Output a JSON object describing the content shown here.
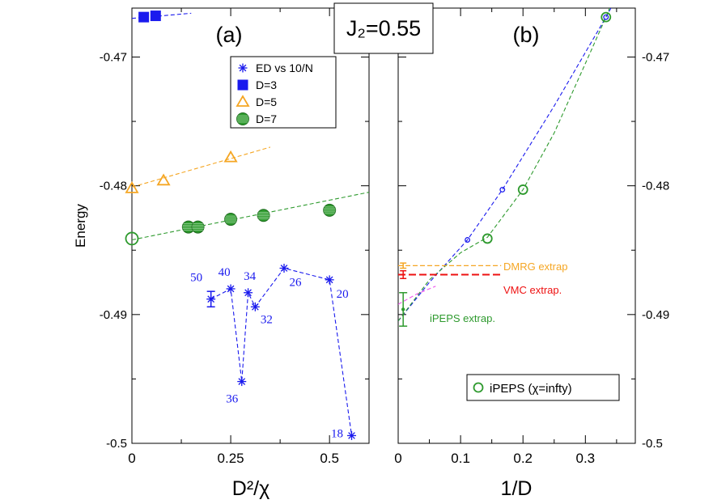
{
  "figure_label": "J₂=0.55",
  "colors": {
    "blue": "#1a1aee",
    "orange": "#f5a623",
    "green": "#2e9a2e",
    "red": "#ee1111",
    "magenta": "#ee55ee"
  },
  "chart_data": [
    {
      "type": "scatter",
      "panel_label": "(a)",
      "xlabel": "D²/χ",
      "ylabel": "Energy",
      "xlim": [
        0,
        0.6
      ],
      "ylim": [
        -0.5,
        -0.4662
      ],
      "xticks": [
        0,
        0.25,
        0.5
      ],
      "xtick_labels": [
        "0",
        "0.25",
        "0.5"
      ],
      "yticks": [
        -0.5,
        -0.49,
        -0.48,
        -0.47
      ],
      "ytick_labels": [
        "-0.5",
        "-0.49",
        "-0.48",
        "-0.47"
      ],
      "legend": [
        {
          "name": "ED vs 10/N",
          "color": "#1a1aee",
          "marker": "star"
        },
        {
          "name": "D=3",
          "color": "#1a1aee",
          "marker": "square"
        },
        {
          "name": "D=5",
          "color": "#f5a623",
          "marker": "triangle"
        },
        {
          "name": "D=7",
          "color": "#2e9a2e",
          "marker": "circle"
        }
      ],
      "series": [
        {
          "name": "ED vs 10/N",
          "color": "#1a1aee",
          "marker": "star",
          "connect": true,
          "points": [
            {
              "x": 0.2,
              "y": -0.4888,
              "label": "50",
              "errorbar": 0.0006
            },
            {
              "x": 0.25,
              "y": -0.488,
              "label": "40"
            },
            {
              "x": 0.278,
              "y": -0.4952,
              "label": "36"
            },
            {
              "x": 0.294,
              "y": -0.4883,
              "label": "34"
            },
            {
              "x": 0.312,
              "y": -0.4894,
              "label": "32"
            },
            {
              "x": 0.385,
              "y": -0.4864,
              "label": "26"
            },
            {
              "x": 0.5,
              "y": -0.4873,
              "label": "20"
            },
            {
              "x": 0.556,
              "y": -0.4994,
              "label": "18"
            }
          ]
        },
        {
          "name": "D=3",
          "color": "#1a1aee",
          "marker": "square",
          "points": [
            {
              "x": 0.03,
              "y": -0.4669
            },
            {
              "x": 0.06,
              "y": -0.4668
            }
          ],
          "fit": {
            "x0": 0.0,
            "y0": -0.467,
            "x1": 0.15,
            "y1": -0.4666
          }
        },
        {
          "name": "D=5",
          "color": "#f5a623",
          "marker": "triangle",
          "points": [
            {
              "x": 0.0,
              "y": -0.4802
            },
            {
              "x": 0.08,
              "y": -0.4796
            },
            {
              "x": 0.25,
              "y": -0.4778
            }
          ],
          "fit": {
            "x0": 0.0,
            "y0": -0.4801,
            "x1": 0.35,
            "y1": -0.477
          }
        },
        {
          "name": "D=7",
          "color": "#2e9a2e",
          "marker": "circle",
          "points": [
            {
              "x": 0.0,
              "y": -0.4841,
              "open": true
            },
            {
              "x": 0.143,
              "y": -0.4832
            },
            {
              "x": 0.167,
              "y": -0.4832
            },
            {
              "x": 0.25,
              "y": -0.4826
            },
            {
              "x": 0.333,
              "y": -0.4823
            },
            {
              "x": 0.5,
              "y": -0.4819
            }
          ],
          "fit": {
            "x0": 0.0,
            "y0": -0.4842,
            "x1": 0.6,
            "y1": -0.4805
          }
        }
      ]
    },
    {
      "type": "line",
      "panel_label": "(b)",
      "xlabel": "1/D",
      "xlim": [
        0,
        0.38
      ],
      "ylim": [
        -0.5,
        -0.4662
      ],
      "xticks": [
        0,
        0.1,
        0.2,
        0.3
      ],
      "xtick_labels": [
        "0",
        "0.1",
        "0.2",
        "0.3"
      ],
      "yticks": [
        -0.5,
        -0.49,
        -0.48,
        -0.47
      ],
      "ytick_labels": [
        "-0.5",
        "-0.49",
        "-0.48",
        "-0.47"
      ],
      "legend": [
        {
          "name": "iPEPS (χ=infty)",
          "color": "#2e9a2e",
          "marker": "open-circle"
        }
      ],
      "series": [
        {
          "name": "iPEPS (χ=infty)",
          "color": "#2e9a2e",
          "marker": "open-circle",
          "points": [
            {
              "x": 0.333,
              "y": -0.4669
            },
            {
              "x": 0.2,
              "y": -0.4803
            },
            {
              "x": 0.143,
              "y": -0.4841
            }
          ]
        },
        {
          "name": "blue small circles",
          "color": "#1a1aee",
          "marker": "small-circle",
          "points": [
            {
              "x": 0.333,
              "y": -0.4669
            },
            {
              "x": 0.167,
              "y": -0.4803
            },
            {
              "x": 0.111,
              "y": -0.4842
            }
          ]
        }
      ],
      "fits": [
        {
          "color": "#1a1aee",
          "points": [
            [
              0.0,
              -0.4905
            ],
            [
              0.05,
              -0.4875
            ],
            [
              0.111,
              -0.4842
            ],
            [
              0.167,
              -0.4803
            ],
            [
              0.25,
              -0.4738
            ],
            [
              0.333,
              -0.4669
            ],
            [
              0.35,
              -0.4654
            ]
          ]
        },
        {
          "color": "#2e9a2e",
          "points": [
            [
              0.0,
              -0.4905
            ],
            [
              0.05,
              -0.4873
            ],
            [
              0.1,
              -0.4852
            ],
            [
              0.143,
              -0.484
            ],
            [
              0.2,
              -0.4803
            ],
            [
              0.25,
              -0.4759
            ],
            [
              0.3,
              -0.4705
            ],
            [
              0.333,
              -0.4669
            ],
            [
              0.36,
              -0.4636
            ]
          ]
        },
        {
          "color": "#ee55ee",
          "points": [
            [
              0.0,
              -0.4892
            ],
            [
              0.03,
              -0.4884
            ],
            [
              0.06,
              -0.4878
            ]
          ]
        }
      ],
      "reference_lines": [
        {
          "label": "DMRG extrap",
          "y": -0.4862,
          "err": 0.0002,
          "color": "#f5a623",
          "x0": 0.0,
          "x1": 0.165
        },
        {
          "label": "VMC extrap.",
          "y": -0.4869,
          "err": 0.0003,
          "color": "#ee1111",
          "x0": 0.0,
          "x1": 0.165
        }
      ],
      "extrapolation": {
        "label": "iPEPS extrap.",
        "y": -0.4896,
        "err": 0.0013,
        "color": "#2e9a2e",
        "x": 0.0
      }
    }
  ]
}
